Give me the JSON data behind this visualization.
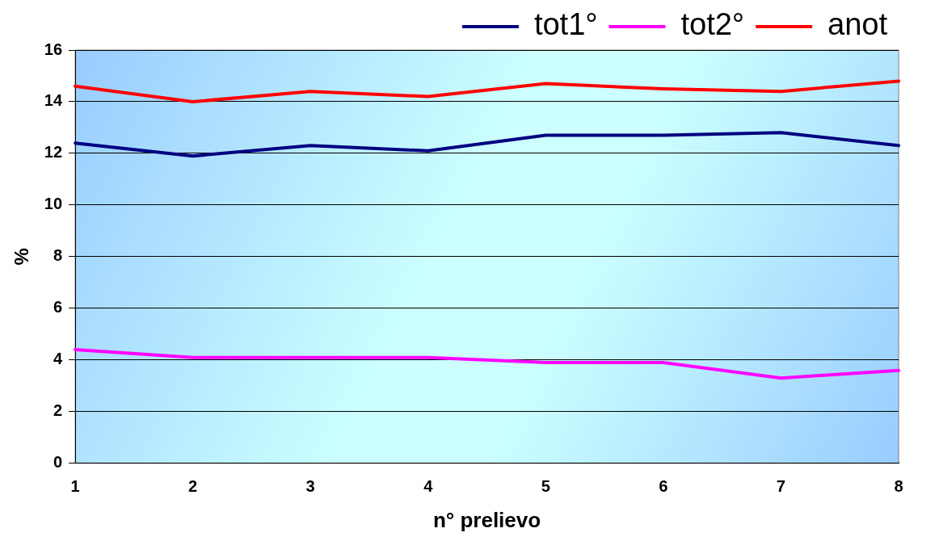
{
  "chart_data": {
    "type": "line",
    "xlabel": "n° prelievo",
    "ylabel": "%",
    "categories": [
      "1",
      "2",
      "3",
      "4",
      "5",
      "6",
      "7",
      "8"
    ],
    "series": [
      {
        "name": "tot1°",
        "color": "#000080",
        "values": [
          12.4,
          11.9,
          12.3,
          12.1,
          12.7,
          12.7,
          12.8,
          12.3
        ]
      },
      {
        "name": "tot2°",
        "color": "#ff00ff",
        "values": [
          4.4,
          4.1,
          4.1,
          4.1,
          3.9,
          3.9,
          3.3,
          3.6
        ]
      },
      {
        "name": "anot",
        "color": "#ff0000",
        "values": [
          14.6,
          14.0,
          14.4,
          14.2,
          14.7,
          14.5,
          14.4,
          14.8
        ]
      }
    ],
    "ylim": [
      0,
      16
    ],
    "yticks": [
      0,
      2,
      4,
      6,
      8,
      10,
      12,
      14,
      16
    ],
    "grid": "y",
    "legend": "top right",
    "marker": "none",
    "line_style": "solid"
  }
}
